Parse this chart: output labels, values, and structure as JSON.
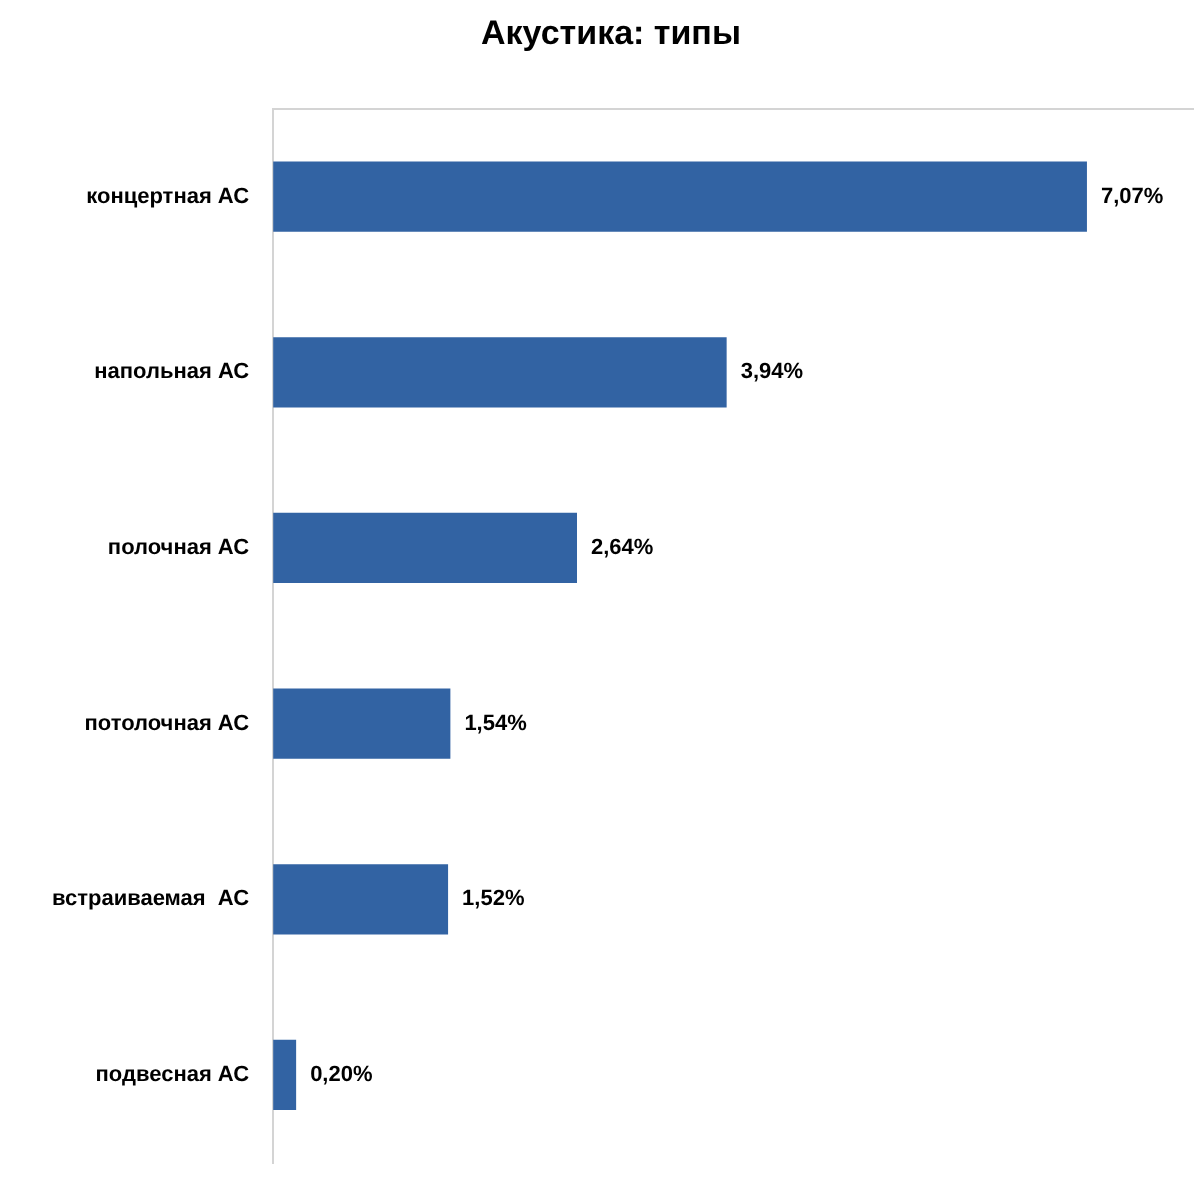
{
  "chart_data": {
    "type": "bar",
    "orientation": "horizontal",
    "title": "Акустика: типы",
    "categories": [
      "концертная АС",
      "напольная АС",
      "полочная АС",
      "потолочная АС",
      "встраиваемая  АС",
      "подвесная АС"
    ],
    "values": [
      7.07,
      3.94,
      2.64,
      1.54,
      1.52,
      0.2
    ],
    "value_labels": [
      "7,07%",
      "3,94%",
      "2,64%",
      "1,54%",
      "1,52%",
      "0,20%"
    ],
    "color": "#3263a3"
  }
}
